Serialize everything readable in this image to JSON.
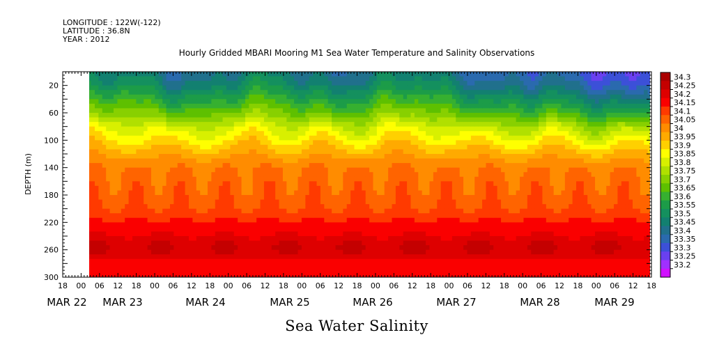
{
  "header": {
    "longitude": "LONGITUDE : 122W(-122)",
    "latitude": "LATITUDE : 36.8N",
    "year": "YEAR : 2012"
  },
  "chart_data": {
    "type": "heatmap",
    "title": "Hourly Gridded MBARI Mooring M1 Sea Water Temperature and Salinity Observations",
    "variable_title": "Sea Water Salinity",
    "ylabel": "DEPTH (m)",
    "xlabel": "",
    "ylim": [
      300,
      0
    ],
    "y_reversed": true,
    "y_ticks": [
      20,
      60,
      100,
      140,
      180,
      220,
      260,
      300
    ],
    "x_hour_ticks": [
      "18",
      "00",
      "06",
      "12",
      "18",
      "00",
      "06",
      "12",
      "18",
      "00",
      "06",
      "12",
      "18",
      "00",
      "06",
      "12",
      "18",
      "00",
      "06",
      "12",
      "18",
      "00",
      "06",
      "12",
      "18",
      "00",
      "06",
      "12",
      "18",
      "00",
      "06",
      "12",
      "18"
    ],
    "x_date_labels": [
      "MAR 22",
      "MAR 23",
      "MAR 24",
      "MAR 25",
      "MAR 26",
      "MAR 27",
      "MAR 28",
      "MAR 29"
    ],
    "x_range_hours_from_mar22_00": [
      -6,
      186
    ],
    "data_start_hour": 2,
    "colorbar": {
      "levels": [
        34.3,
        34.25,
        34.2,
        34.15,
        34.1,
        34.05,
        34,
        33.95,
        33.9,
        33.85,
        33.8,
        33.75,
        33.7,
        33.65,
        33.6,
        33.55,
        33.5,
        33.45,
        33.4,
        33.35,
        33.3,
        33.25,
        33.2
      ],
      "colors": [
        "#aa0000",
        "#c40000",
        "#de0000",
        "#fa0000",
        "#ff3a00",
        "#ff6400",
        "#ff8c00",
        "#ffaa00",
        "#ffd000",
        "#ffff00",
        "#d8f000",
        "#b0e000",
        "#88d000",
        "#5ec000",
        "#36b030",
        "#1c9c48",
        "#14905e",
        "#128070",
        "#20708c",
        "#2a6aae",
        "#3c50d8",
        "#6a40f0",
        "#a030ff",
        "#d010ff"
      ]
    },
    "salinity_profile_by_depth": {
      "depths_m": [
        5,
        20,
        40,
        60,
        80,
        100,
        120,
        140,
        160,
        180,
        200,
        220,
        240,
        260,
        280,
        300
      ],
      "typical_values": [
        33.45,
        33.5,
        33.6,
        33.7,
        33.82,
        33.9,
        33.98,
        34.05,
        34.07,
        34.08,
        34.1,
        34.16,
        34.2,
        34.23,
        34.18,
        34.16
      ]
    }
  }
}
